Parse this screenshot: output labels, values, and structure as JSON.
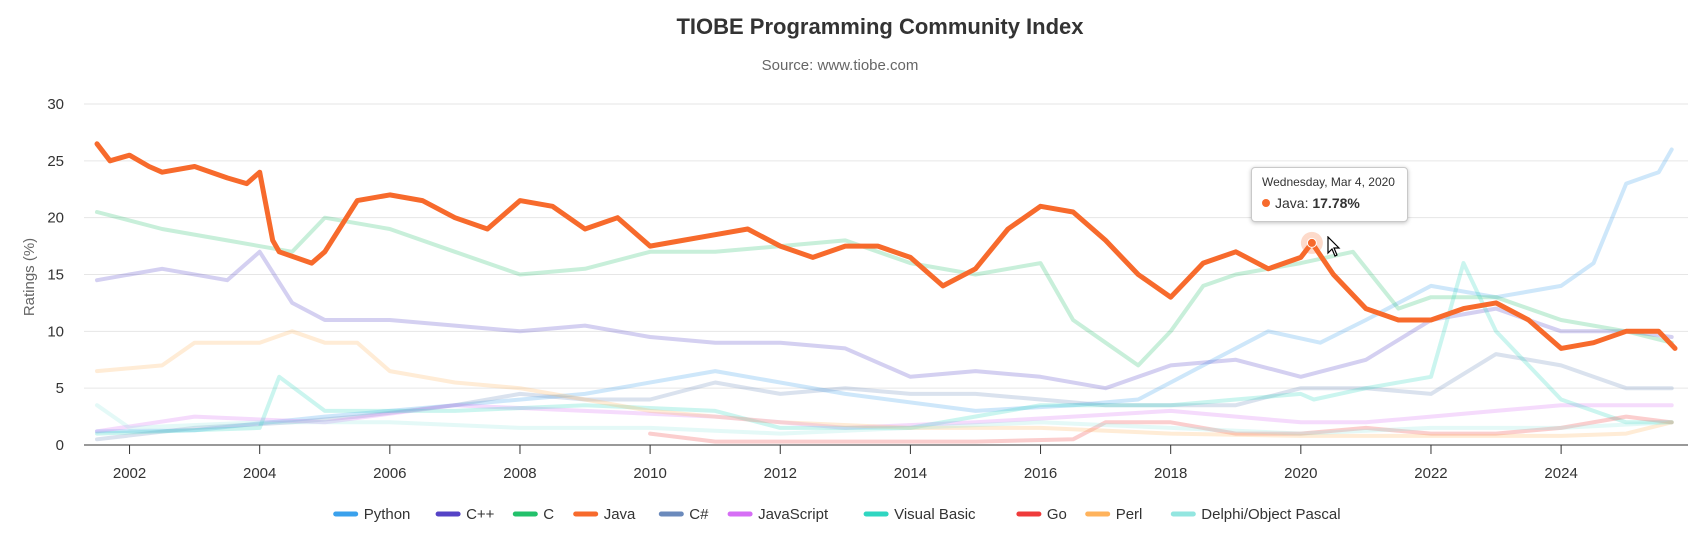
{
  "chart_data": {
    "type": "line",
    "title": "TIOBE Programming Community Index",
    "subtitle": "Source: www.tiobe.com",
    "ylabel": "Ratings (%)",
    "xlabel": "",
    "ylim": [
      0,
      30
    ],
    "yticks": [
      "0",
      "5",
      "10",
      "15",
      "20",
      "25",
      "30"
    ],
    "xticks": [
      "2002",
      "2004",
      "2006",
      "2008",
      "2010",
      "2012",
      "2014",
      "2016",
      "2018",
      "2020",
      "2022",
      "2024"
    ],
    "grid": "horizontal",
    "legend_position": "bottom",
    "highlighted_series": "Java",
    "series": [
      {
        "name": "Python",
        "color": "#3aa1ec",
        "x": [
          2001.5,
          2003,
          2005,
          2007,
          2009,
          2011,
          2013,
          2015,
          2016.5,
          2017.5,
          2018.5,
          2019.5,
          2020.3,
          2021,
          2022,
          2023,
          2024,
          2024.5,
          2025,
          2025.5,
          2025.7
        ],
        "y": [
          1.2,
          1.3,
          2.5,
          3.5,
          4.5,
          6.5,
          4.5,
          3,
          3.5,
          4,
          7,
          10,
          9,
          11,
          14,
          13,
          14,
          16,
          23,
          24,
          26
        ]
      },
      {
        "name": "C++",
        "color": "#5543c6",
        "x": [
          2001.5,
          2002.5,
          2003.5,
          2004,
          2004.5,
          2005,
          2006,
          2007,
          2008,
          2009,
          2010,
          2011,
          2012,
          2013,
          2014,
          2015,
          2016,
          2017,
          2018,
          2019,
          2020,
          2021,
          2022,
          2023,
          2024,
          2025,
          2025.7
        ],
        "y": [
          14.5,
          15.5,
          14.5,
          17,
          12.5,
          11,
          11,
          10.5,
          10,
          10.5,
          9.5,
          9,
          9,
          8.5,
          6,
          6.5,
          6,
          5,
          7,
          7.5,
          6,
          7.5,
          11,
          12,
          10,
          10,
          9.5
        ]
      },
      {
        "name": "C",
        "color": "#23c16b",
        "x": [
          2001.5,
          2002.5,
          2003.5,
          2004.5,
          2005,
          2006,
          2007,
          2008,
          2009,
          2010,
          2011,
          2012,
          2013,
          2014,
          2015,
          2016,
          2016.5,
          2017,
          2017.5,
          2018,
          2018.5,
          2019,
          2020,
          2020.8,
          2021.5,
          2022,
          2023,
          2024,
          2025,
          2025.7
        ],
        "y": [
          20.5,
          19,
          18,
          17,
          20,
          19,
          17,
          15,
          15.5,
          17,
          17,
          17.5,
          18,
          16,
          15,
          16,
          11,
          9,
          7,
          10,
          14,
          15,
          16,
          17,
          12,
          13,
          13,
          11,
          10,
          9
        ]
      },
      {
        "name": "Java",
        "color": "#f76a2c",
        "x": [
          2001.5,
          2001.7,
          2002,
          2002.3,
          2002.5,
          2003,
          2003.5,
          2003.8,
          2004,
          2004.2,
          2004.3,
          2004.8,
          2005,
          2005.5,
          2006,
          2006.5,
          2007,
          2007.5,
          2008,
          2008.5,
          2009,
          2009.5,
          2010,
          2010.5,
          2011,
          2011.5,
          2012,
          2012.5,
          2013,
          2013.5,
          2014,
          2014.5,
          2015,
          2015.5,
          2016,
          2016.5,
          2017,
          2017.5,
          2018,
          2018.5,
          2019,
          2019.5,
          2020,
          2020.17,
          2020.5,
          2021,
          2021.5,
          2022,
          2022.5,
          2023,
          2023.5,
          2024,
          2024.5,
          2025,
          2025.5,
          2025.75
        ],
        "y": [
          26.5,
          25,
          25.5,
          24.5,
          24,
          24.5,
          23.5,
          23,
          24,
          18,
          17,
          16,
          17,
          21.5,
          22,
          21.5,
          20,
          19,
          21.5,
          21,
          19,
          20,
          17.5,
          18,
          18.5,
          19,
          17.5,
          16.5,
          17.5,
          17.5,
          16.5,
          14,
          15.5,
          19,
          21,
          20.5,
          18,
          15,
          13,
          16,
          17,
          15.5,
          16.5,
          17.78,
          15,
          12,
          11,
          11,
          12,
          12.5,
          11,
          8.5,
          9,
          10,
          10,
          8.5
        ]
      },
      {
        "name": "C#",
        "color": "#6b8abc",
        "x": [
          2001.5,
          2003,
          2004.5,
          2005.5,
          2007,
          2008,
          2009,
          2010,
          2011,
          2012,
          2013,
          2014,
          2015,
          2016,
          2017,
          2018,
          2019,
          2020,
          2021,
          2022,
          2023,
          2024,
          2025,
          2025.7
        ],
        "y": [
          0.5,
          1.5,
          2,
          2.5,
          3.5,
          4.5,
          4,
          4,
          5.5,
          4.5,
          5,
          4.5,
          4.5,
          4,
          3.5,
          3.5,
          3.5,
          5,
          5,
          4.5,
          8,
          7,
          5,
          5
        ]
      },
      {
        "name": "JavaScript",
        "color": "#d66ef5",
        "x": [
          2001.5,
          2003,
          2005,
          2007,
          2009,
          2011,
          2013,
          2015,
          2016.5,
          2018,
          2019,
          2020,
          2021,
          2022,
          2023,
          2024,
          2025,
          2025.7
        ],
        "y": [
          1.2,
          2.5,
          2,
          3.5,
          3,
          2.5,
          1.5,
          2,
          2.5,
          3,
          2.5,
          2,
          2,
          2.5,
          3,
          3.5,
          3.5,
          3.5
        ]
      },
      {
        "name": "Visual Basic",
        "color": "#2fd6c1",
        "x": [
          2001.5,
          2004,
          2004.3,
          2005,
          2007,
          2009,
          2011,
          2012,
          2014,
          2016,
          2018,
          2019,
          2020,
          2020.2,
          2021,
          2022,
          2022.5,
          2023,
          2024,
          2025,
          2025.7
        ],
        "y": [
          1,
          1.5,
          6,
          3,
          3,
          3.5,
          3,
          1.5,
          1.5,
          3.5,
          3.5,
          4,
          4.5,
          4,
          5,
          6,
          16,
          10,
          4,
          2,
          2
        ]
      },
      {
        "name": "Go",
        "color": "#ef3b3b",
        "x": [
          2010,
          2011,
          2013,
          2015,
          2016.5,
          2017,
          2018,
          2019,
          2020,
          2021,
          2022,
          2023,
          2024,
          2025,
          2025.7
        ],
        "y": [
          1,
          0.3,
          0.3,
          0.3,
          0.5,
          2,
          2,
          1,
          1,
          1.5,
          1,
          1,
          1.5,
          2.5,
          2
        ]
      },
      {
        "name": "Perl",
        "color": "#ffb35c",
        "x": [
          2001.5,
          2002.5,
          2003,
          2004,
          2004.5,
          2005,
          2005.5,
          2006,
          2007,
          2008,
          2009,
          2010,
          2011,
          2012,
          2014,
          2016,
          2018,
          2020,
          2022,
          2024,
          2025,
          2025.7
        ],
        "y": [
          6.5,
          7,
          9,
          9,
          10,
          9,
          9,
          6.5,
          5.5,
          5,
          4,
          3,
          2.5,
          2,
          1.5,
          1.5,
          1,
          0.8,
          0.8,
          0.8,
          1,
          2
        ]
      },
      {
        "name": "Delphi/Object Pascal",
        "color": "#93e6e0",
        "x": [
          2001.5,
          2002,
          2004,
          2006,
          2008,
          2010,
          2012,
          2014,
          2016,
          2018,
          2020,
          2022,
          2024,
          2025.7
        ],
        "y": [
          3.5,
          1.5,
          2,
          2,
          1.5,
          1.5,
          1,
          1.5,
          2,
          1.5,
          1,
          1.5,
          1.5,
          2
        ]
      }
    ],
    "tooltip": {
      "date": "Wednesday, Mar 4, 2020",
      "series": "Java",
      "label": "Java:",
      "value": "17.78%"
    }
  }
}
